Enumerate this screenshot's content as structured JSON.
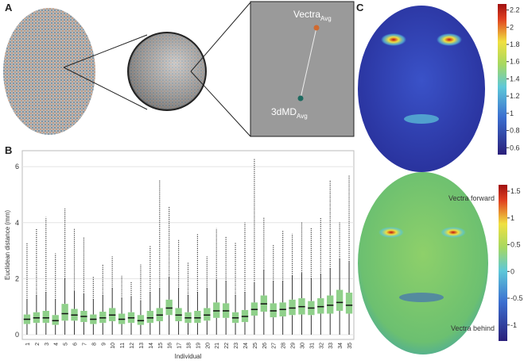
{
  "panels": {
    "a": "A",
    "b": "B",
    "c": "C"
  },
  "panel_a": {
    "vectra_label": {
      "text": "Vectra",
      "sub": "Avg"
    },
    "dmd_label": {
      "text": "3dMD",
      "sub": "Avg"
    }
  },
  "chart_data": {
    "type": "box",
    "y_label": "Euclidean distance (mm)",
    "x_label": "Individual",
    "categories": [
      "1",
      "2",
      "3",
      "4",
      "5",
      "6",
      "7",
      "8",
      "9",
      "10",
      "11",
      "12",
      "13",
      "14",
      "15",
      "16",
      "17",
      "18",
      "19",
      "20",
      "21",
      "22",
      "23",
      "24",
      "25",
      "26",
      "27",
      "28",
      "29",
      "30",
      "31",
      "32",
      "33",
      "34",
      "35"
    ],
    "color": "#8fd08a",
    "whisker_low": [
      0,
      0,
      0,
      0,
      0,
      0,
      0,
      0,
      0,
      0,
      0,
      0,
      0,
      0,
      0,
      0,
      0,
      0,
      0,
      0,
      0,
      0,
      0,
      0,
      0,
      0,
      0,
      0,
      0,
      0,
      0,
      0,
      0,
      0,
      0
    ],
    "q1": [
      0.38,
      0.42,
      0.42,
      0.35,
      0.5,
      0.5,
      0.45,
      0.38,
      0.42,
      0.48,
      0.38,
      0.42,
      0.35,
      0.42,
      0.48,
      0.7,
      0.48,
      0.42,
      0.42,
      0.5,
      0.6,
      0.6,
      0.42,
      0.45,
      0.68,
      0.82,
      0.62,
      0.65,
      0.7,
      0.72,
      0.7,
      0.75,
      0.75,
      0.85,
      0.75
    ],
    "median": [
      0.55,
      0.6,
      0.6,
      0.5,
      0.75,
      0.7,
      0.65,
      0.55,
      0.6,
      0.7,
      0.55,
      0.6,
      0.5,
      0.6,
      0.7,
      0.95,
      0.7,
      0.6,
      0.6,
      0.7,
      0.85,
      0.85,
      0.6,
      0.65,
      0.9,
      1.1,
      0.85,
      0.9,
      0.95,
      1.0,
      0.95,
      1.0,
      1.05,
      1.15,
      1.05
    ],
    "q3": [
      0.72,
      0.8,
      0.85,
      0.7,
      1.1,
      0.92,
      0.85,
      0.72,
      0.82,
      0.95,
      0.75,
      0.8,
      0.7,
      0.85,
      0.95,
      1.25,
      0.95,
      0.8,
      0.85,
      0.95,
      1.15,
      1.12,
      0.8,
      0.88,
      1.15,
      1.4,
      1.12,
      1.15,
      1.25,
      1.3,
      1.2,
      1.3,
      1.4,
      1.6,
      1.5
    ],
    "whisker_high": [
      1.25,
      1.4,
      1.5,
      1.25,
      2.0,
      1.55,
      1.45,
      1.25,
      1.4,
      1.65,
      1.3,
      1.35,
      1.2,
      1.5,
      1.65,
      2.05,
      1.65,
      1.4,
      1.5,
      1.65,
      1.95,
      1.9,
      1.4,
      1.5,
      1.85,
      2.3,
      1.9,
      1.9,
      2.1,
      2.2,
      2.0,
      2.15,
      2.35,
      2.7,
      2.6
    ],
    "max": [
      3.3,
      3.8,
      4.2,
      2.9,
      4.5,
      3.8,
      3.5,
      2.1,
      2.5,
      2.8,
      2.1,
      1.9,
      2.5,
      3.2,
      5.5,
      4.6,
      3.4,
      2.6,
      3.6,
      2.8,
      3.8,
      3.5,
      3.3,
      4.0,
      6.3,
      4.2,
      3.2,
      3.7,
      3.6,
      4.0,
      3.8,
      4.2,
      5.5,
      4.0,
      5.7
    ],
    "ylim": [
      -0.17,
      6.57
    ],
    "yticks": [
      0,
      2,
      4,
      6
    ],
    "grid": true
  },
  "colorbar_top": {
    "ylim": [
      0.52,
      2.27
    ],
    "yticks": [
      0.6,
      0.8,
      1,
      1.2,
      1.4,
      1.6,
      1.8,
      2,
      2.2
    ]
  },
  "colorbar_bottom": {
    "ylim": [
      -1.3,
      1.62
    ],
    "yticks": [
      -1,
      -0.5,
      0,
      0.5,
      1,
      1.5
    ],
    "top_label": "Vectra forward",
    "bottom_label": "Vectra behind"
  }
}
